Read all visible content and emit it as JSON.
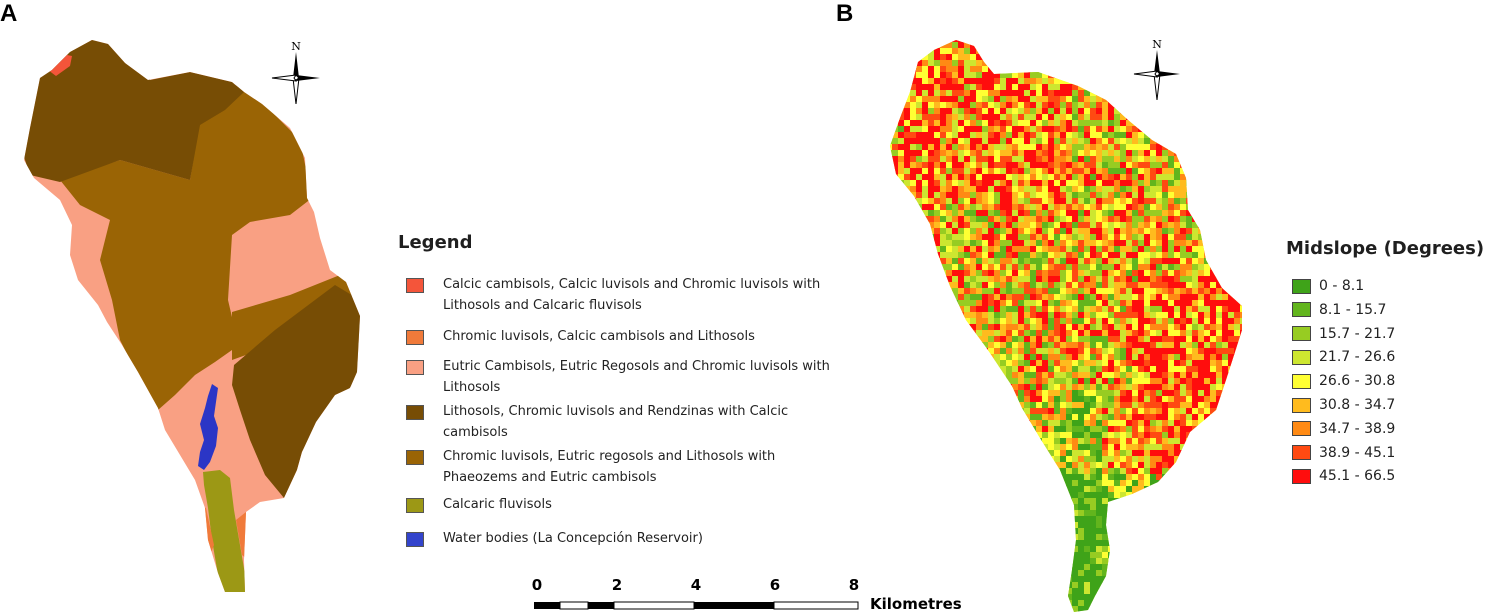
{
  "panels": {
    "a_label": "A",
    "b_label": "B"
  },
  "north_arrow": {
    "label": "N",
    "icon": "north-arrow-icon"
  },
  "soil_legend": {
    "title": "Legend",
    "items": [
      {
        "label": "Calcic cambisols, Calcic luvisols and Chromic luvisols with Lithosols and Calcaric fluvisols",
        "color": "#f4553a"
      },
      {
        "label": "Chromic luvisols, Calcic cambisols and Lithosols",
        "color": "#f07a3a"
      },
      {
        "label": "Eutric Cambisols, Eutric Regosols and Chromic luvisols with Lithosols",
        "color": "#f9a083"
      },
      {
        "label": "Lithosols, Chromic luvisols and Rendzinas with Calcic cambisols",
        "color": "#774d05"
      },
      {
        "label": "Chromic luvisols, Eutric regosols and Lithosols with Phaeozems and Eutric cambisols",
        "color": "#9a6405"
      },
      {
        "label": "Calcaric fluvisols",
        "color": "#9c9815"
      },
      {
        "label": "Water bodies (La Concepción Reservoir)",
        "color": "#3344cc"
      }
    ]
  },
  "slope_legend": {
    "title": "Midslope (Degrees)",
    "classes": [
      {
        "label": "0 - 8.1",
        "color": "#3fa319"
      },
      {
        "label": "8.1 - 15.7",
        "color": "#62b51d"
      },
      {
        "label": "15.7 - 21.7",
        "color": "#97cc22"
      },
      {
        "label": "21.7 - 26.6",
        "color": "#cde630"
      },
      {
        "label": "26.6 - 30.8",
        "color": "#ffff33"
      },
      {
        "label": "30.8 - 34.7",
        "color": "#ffbb1e"
      },
      {
        "label": "34.7 - 38.9",
        "color": "#ff8a14"
      },
      {
        "label": "38.9 - 45.1",
        "color": "#ff4a12"
      },
      {
        "label": "45.1 - 66.5",
        "color": "#ff0d0d"
      }
    ]
  },
  "scale_bar": {
    "ticks": [
      "0",
      "2",
      "4",
      "6",
      "8"
    ],
    "unit": "Kilometres"
  }
}
